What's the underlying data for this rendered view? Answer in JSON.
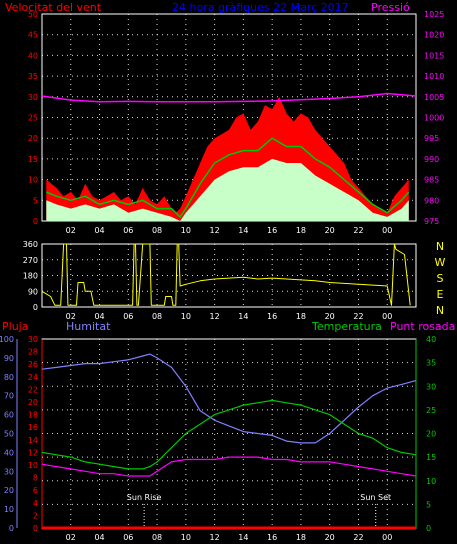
{
  "header": {
    "left_title": "Velocitat del vent",
    "center_title": "24 hora gràfiques  22 Març 2017",
    "right_title": "Pressió"
  },
  "colors": {
    "wind_gust": "#ff0000",
    "wind_avg": "#00c800",
    "wind_speed": "#c8ffc8",
    "pressure": "#ff00ff",
    "direction": "#ffff00",
    "humidity": "#8080ff",
    "temperature": "#00c800",
    "dewpoint": "#ff00ff",
    "rain": "#ff0000",
    "axis_left": "#ff0000",
    "axis_right": "#ff00ff",
    "axis_humidity": "#8080ff",
    "axis_temperature": "#00c800",
    "axis_direction": "#ffff00",
    "title_center": "#0000ff",
    "grid": "#ffffff"
  },
  "bottom_labels": {
    "rain": "Pluja",
    "humidity": "Humitat",
    "temperature": "Temperatura",
    "dewpoint": "Punt rosada",
    "sunrise": "Sun Rise",
    "sunset": "Sun Set"
  },
  "direction_letters": [
    "N",
    "W",
    "S",
    "E",
    "N"
  ],
  "chart_data": [
    {
      "type": "line",
      "title": "Velocitat del vent",
      "x_ticks": [
        "02",
        "04",
        "06",
        "08",
        "10",
        "12",
        "14",
        "16",
        "18",
        "20",
        "22",
        "00"
      ],
      "x_hours": [
        0,
        26
      ],
      "ylim_left": [
        0,
        50
      ],
      "yticks_left": [
        0,
        5,
        10,
        15,
        20,
        25,
        30,
        35,
        40,
        45,
        50
      ],
      "ylim_right": [
        975,
        1025
      ],
      "yticks_right": [
        975,
        980,
        985,
        990,
        995,
        1000,
        1005,
        1010,
        1015,
        1020,
        1025
      ],
      "series": [
        {
          "name": "gust",
          "axis": "left",
          "x": [
            0.3,
            1.0,
            1.5,
            2.0,
            2.5,
            3.0,
            3.5,
            4.0,
            4.5,
            5.0,
            5.5,
            6.0,
            6.5,
            7.0,
            7.5,
            8.0,
            8.5,
            9.0,
            9.3,
            9.6,
            10.0,
            10.5,
            11.0,
            11.5,
            12.0,
            12.5,
            13.0,
            13.5,
            14.0,
            14.5,
            15.0,
            15.5,
            16.0,
            16.5,
            17.0,
            17.5,
            18.0,
            18.5,
            19.0,
            19.5,
            20.0,
            20.5,
            21.0,
            21.5,
            22.0,
            22.5,
            23.0,
            23.5,
            24.0,
            24.5,
            25.0,
            25.5
          ],
          "values": [
            10,
            8,
            6,
            7,
            5,
            9,
            6,
            5,
            6,
            7,
            5,
            6,
            4,
            8,
            5,
            4,
            6,
            3,
            2,
            3,
            6,
            10,
            14,
            18,
            20,
            21,
            22,
            25,
            26,
            22,
            24,
            28,
            27,
            30,
            26,
            24,
            26,
            25,
            22,
            20,
            18,
            16,
            14,
            10,
            8,
            6,
            4,
            3,
            2,
            6,
            8,
            10
          ]
        },
        {
          "name": "average",
          "axis": "left",
          "x": [
            0.3,
            1.0,
            2.0,
            3.0,
            4.0,
            5.0,
            6.0,
            7.0,
            8.0,
            9.0,
            9.6,
            10.0,
            11.0,
            12.0,
            13.0,
            14.0,
            15.0,
            16.0,
            17.0,
            18.0,
            19.0,
            20.0,
            21.0,
            22.0,
            23.0,
            24.0,
            25.0,
            25.5
          ],
          "values": [
            7,
            6,
            5,
            6,
            4,
            5,
            4,
            5,
            3,
            3,
            1,
            3,
            9,
            14,
            16,
            17,
            17,
            20,
            18,
            18,
            15,
            13,
            10,
            7,
            4,
            2,
            5,
            7
          ]
        },
        {
          "name": "speed",
          "axis": "left",
          "x": [
            0.3,
            1.0,
            2.0,
            3.0,
            4.0,
            5.0,
            6.0,
            7.0,
            8.0,
            9.0,
            9.6,
            10.0,
            11.0,
            12.0,
            13.0,
            14.0,
            15.0,
            16.0,
            17.0,
            18.0,
            19.0,
            20.0,
            21.0,
            22.0,
            23.0,
            24.0,
            25.0,
            25.5
          ],
          "values": [
            5,
            4,
            3,
            4,
            3,
            4,
            2,
            3,
            2,
            1,
            0,
            2,
            6,
            10,
            12,
            13,
            13,
            15,
            14,
            14,
            11,
            9,
            7,
            5,
            2,
            1,
            3,
            5
          ]
        },
        {
          "name": "pressure",
          "axis": "right",
          "x": [
            0,
            2,
            4,
            6,
            8,
            10,
            12,
            14,
            16,
            18,
            20,
            22,
            24,
            26
          ],
          "values": [
            1005.2,
            1004.2,
            1003.8,
            1003.9,
            1003.8,
            1003.8,
            1003.8,
            1003.9,
            1004.0,
            1004.3,
            1004.6,
            1005.0,
            1005.8,
            1005.2
          ]
        }
      ]
    },
    {
      "type": "line",
      "title": "",
      "x_ticks": [
        "02",
        "04",
        "06",
        "08",
        "10",
        "12",
        "14",
        "16",
        "18",
        "20",
        "22",
        "00"
      ],
      "x_hours": [
        0,
        26
      ],
      "ylim": [
        0,
        360
      ],
      "yticks": [
        0,
        90,
        180,
        270,
        360
      ],
      "series": [
        {
          "name": "direction",
          "x": [
            0.0,
            0.6,
            0.9,
            1.3,
            1.5,
            1.7,
            1.8,
            2.4,
            2.5,
            2.9,
            3.0,
            3.4,
            3.6,
            4.6,
            4.7,
            6.3,
            6.4,
            6.5,
            6.6,
            6.7,
            7.0,
            7.5,
            7.6,
            7.7,
            8.0,
            8.5,
            8.6,
            9.0,
            9.1,
            9.3,
            9.4,
            9.5,
            9.6,
            10.0,
            11.0,
            12.0,
            13.0,
            14.0,
            15.0,
            16.0,
            17.0,
            18.0,
            19.0,
            20.0,
            21.0,
            22.0,
            23.0,
            24.0,
            24.3,
            24.5,
            24.6,
            25.2,
            25.6
          ],
          "values": [
            90,
            60,
            10,
            10,
            360,
            360,
            10,
            10,
            140,
            140,
            90,
            90,
            10,
            10,
            10,
            10,
            360,
            360,
            10,
            10,
            360,
            360,
            10,
            10,
            10,
            10,
            60,
            60,
            10,
            10,
            360,
            360,
            120,
            130,
            150,
            160,
            165,
            170,
            160,
            165,
            160,
            155,
            150,
            140,
            135,
            130,
            125,
            120,
            10,
            360,
            330,
            300,
            10
          ]
        }
      ]
    },
    {
      "type": "line",
      "title": "",
      "x_ticks": [
        "02",
        "04",
        "06",
        "08",
        "10",
        "12",
        "14",
        "16",
        "18",
        "20",
        "22",
        "00"
      ],
      "x_hours": [
        0,
        26
      ],
      "ylim_humidity": [
        0,
        100
      ],
      "yticks_humidity": [
        0,
        10,
        20,
        30,
        40,
        50,
        60,
        70,
        80,
        90,
        100
      ],
      "ylim_rain": [
        0,
        30
      ],
      "yticks_rain": [
        0,
        2,
        4,
        6,
        8,
        10,
        12,
        14,
        16,
        18,
        20,
        22,
        24,
        26,
        28,
        30
      ],
      "ylim_temperature": [
        0,
        40
      ],
      "yticks_temperature": [
        0,
        5,
        10,
        15,
        20,
        25,
        30,
        35,
        40
      ],
      "series": [
        {
          "name": "Humitat",
          "axis": "humidity",
          "x": [
            0,
            1,
            2,
            3,
            4,
            5,
            6,
            7,
            7.5,
            8,
            9,
            10,
            11,
            12,
            13,
            14,
            15,
            16,
            17,
            18,
            19,
            20,
            21,
            22,
            23,
            24,
            25,
            26
          ],
          "values": [
            84,
            85,
            86,
            87,
            87,
            88,
            89,
            91,
            92,
            90,
            85,
            75,
            62,
            57,
            54,
            51,
            50,
            49,
            46,
            45,
            45,
            50,
            57,
            64,
            70,
            74,
            76,
            78
          ]
        },
        {
          "name": "Temperatura",
          "axis": "temperature",
          "x": [
            0,
            1,
            2,
            3,
            4,
            5,
            6,
            7,
            7.5,
            8,
            9,
            10,
            11,
            12,
            13,
            14,
            15,
            16,
            17,
            18,
            19,
            20,
            21,
            22,
            23,
            24,
            25,
            26
          ],
          "values": [
            16,
            15.5,
            15,
            14,
            13.5,
            13,
            12.5,
            12.5,
            13,
            14,
            17,
            20,
            22,
            24,
            25,
            26,
            26.5,
            27,
            26.5,
            26,
            25,
            24,
            22,
            20,
            19,
            17,
            16,
            15.5
          ]
        },
        {
          "name": "Punt rosada",
          "axis": "temperature",
          "x": [
            0,
            1,
            2,
            3,
            4,
            5,
            6,
            7,
            7.5,
            8,
            9,
            10,
            11,
            12,
            13,
            14,
            15,
            16,
            17,
            18,
            19,
            20,
            21,
            22,
            23,
            24,
            25,
            26
          ],
          "values": [
            13.5,
            13,
            12.5,
            12,
            11.5,
            11.5,
            11,
            11,
            11,
            12,
            14,
            14.5,
            14.5,
            14.5,
            15,
            15,
            15,
            14.5,
            14.5,
            14,
            14,
            14,
            13.5,
            13,
            12.5,
            12,
            11.5,
            11
          ]
        },
        {
          "name": "Pluja",
          "axis": "rain",
          "x": [
            0,
            26
          ],
          "values": [
            0,
            0
          ]
        }
      ],
      "markers": [
        {
          "label": "Sun Rise",
          "x": 7.1
        },
        {
          "label": "Sun Set",
          "x": 23.2
        }
      ]
    }
  ]
}
